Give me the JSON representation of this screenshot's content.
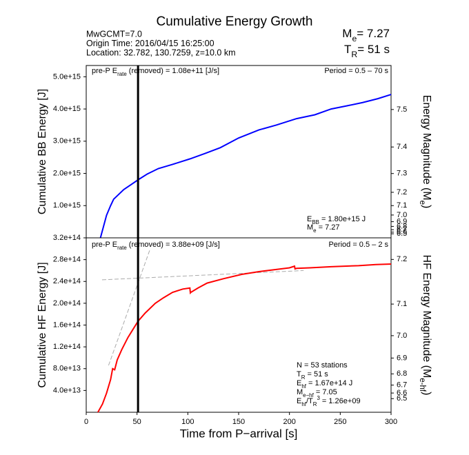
{
  "header": {
    "title": "Cumulative Energy Growth",
    "info": [
      "MwGCMT=7.0",
      "Origin Time: 2016/04/15 16:25:00",
      "Location: 32.782, 130.7259, z=10.0 km"
    ],
    "me": [
      {
        "t": "M"
      },
      {
        "sub": "e"
      },
      {
        "t": "= 7.27"
      }
    ],
    "tr": [
      {
        "t": "T"
      },
      {
        "sub": "R"
      },
      {
        "t": "= 51 s"
      }
    ]
  },
  "chart_data": [
    {
      "type": "line",
      "ylabel": "Cumulative BB Energy [J]",
      "y2label": [
        {
          "t": "Energy Magnitude (M"
        },
        {
          "sub": "e"
        },
        {
          "t": ")"
        }
      ],
      "xlim": [
        0,
        300
      ],
      "ylim": [
        0,
        5350000000000000.0
      ],
      "yticks": [
        {
          "value": 1000000000000000.0,
          "label": "1.0e+15"
        },
        {
          "value": 2000000000000000.0,
          "label": "2.0e+15"
        },
        {
          "value": 3000000000000000.0,
          "label": "3.0e+15"
        },
        {
          "value": 4000000000000000.0,
          "label": "4.0e+15"
        },
        {
          "value": 5000000000000000.0,
          "label": "5.0e+15"
        }
      ],
      "y2ticks": [
        7.5,
        7.4,
        7.3,
        7.2,
        7.1,
        {
          "value": 7,
          "label": "7.0"
        },
        6.9,
        6.8,
        6.7,
        6.6,
        6.5
      ],
      "ref_energy": 1800000000000000.0,
      "ref_magnitude": 7.27,
      "marker_x": 51,
      "color": "#0000ff",
      "x": [
        14,
        17,
        20,
        24,
        27,
        32,
        37,
        44,
        51,
        60,
        71,
        85,
        102,
        117,
        132,
        150,
        170,
        187,
        207,
        225,
        241,
        257,
        272,
        287,
        300
      ],
      "values": [
        0,
        350000000000000.0,
        700000000000000.0,
        1000000000000000.0,
        1200000000000000.0,
        1350000000000000.0,
        1500000000000000.0,
        1650000000000000.0,
        1800000000000000.0,
        1980000000000000.0,
        2150000000000000.0,
        2280000000000000.0,
        2450000000000000.0,
        2620000000000000.0,
        2800000000000000.0,
        3100000000000000.0,
        3350000000000000.0,
        3500000000000000.0,
        3700000000000000.0,
        3820000000000000.0,
        4000000000000000.0,
        4100000000000000.0,
        4200000000000000.0,
        4320000000000000.0,
        4450000000000000.0
      ],
      "annotations": [
        [
          {
            "t": "pre-P E"
          },
          {
            "sub": "rate"
          },
          {
            "t": " (removed) = 1.08e+11 [J/s]"
          }
        ],
        [
          {
            "t": "Period = 0.5 – 70 s"
          }
        ],
        [
          {
            "t": "E"
          },
          {
            "sub": "BB"
          },
          {
            "t": " = 1.80e+15 J"
          }
        ],
        [
          {
            "t": "M"
          },
          {
            "sub": "e"
          },
          {
            "t": " = 7.27"
          }
        ]
      ]
    },
    {
      "type": "line",
      "ylabel": "Cumulative HF Energy [J]",
      "y2label": [
        {
          "t": "HF Energy Magnitude (M"
        },
        {
          "sub": "e-hf"
        },
        {
          "t": ")"
        }
      ],
      "xlabel": "Time from P−arrival [s]",
      "xlim": [
        0,
        300
      ],
      "xticks": [
        0,
        50,
        100,
        150,
        200,
        250,
        300
      ],
      "ylim": [
        0,
        320000000000000.0
      ],
      "yticks": [
        {
          "value": 40000000000000.0,
          "label": "4.0e+13"
        },
        {
          "value": 80000000000000.0,
          "label": "8.0e+13"
        },
        {
          "value": 120000000000000.0,
          "label": "1.2e+14"
        },
        {
          "value": 160000000000000.0,
          "label": "1.6e+14"
        },
        {
          "value": 200000000000000.0,
          "label": "2.0e+14"
        },
        {
          "value": 240000000000000.0,
          "label": "2.4e+14"
        },
        {
          "value": 280000000000000.0,
          "label": "2.8e+14"
        },
        {
          "value": 320000000000000.0,
          "label": "3.2e+14"
        }
      ],
      "y2ticks": [
        7.2,
        7.1,
        {
          "value": 7,
          "label": "7.0"
        },
        6.9,
        6.8,
        6.7,
        6.6,
        6.5
      ],
      "ref_energy": 167000000000000.0,
      "ref_magnitude": 7.05,
      "marker_x": 51,
      "color": "#ff0000",
      "x": [
        11.5,
        16,
        20,
        24,
        26,
        28,
        30.5,
        35,
        41,
        46,
        51,
        58,
        68,
        76,
        85,
        95,
        102,
        102.5,
        103,
        110,
        119,
        135,
        153,
        170,
        187,
        200,
        205,
        205.5,
        207,
        220,
        241,
        268,
        285,
        300
      ],
      "values": [
        0,
        15000000000000.0,
        35000000000000.0,
        60000000000000.0,
        80000000000000.0,
        78000000000000.0,
        96000000000000.0,
        115000000000000.0,
        137000000000000.0,
        152000000000000.0,
        167000000000000.0,
        182000000000000.0,
        200000000000000.0,
        210000000000000.0,
        220000000000000.0,
        226000000000000.0,
        228000000000000.0,
        219000000000000.0,
        220000000000000.0,
        228000000000000.0,
        237000000000000.0,
        245000000000000.0,
        253000000000000.0,
        258000000000000.0,
        262000000000000.0,
        265000000000000.0,
        268000000000000.0,
        263000000000000.0,
        264000000000000.0,
        265000000000000.0,
        267000000000000.0,
        269000000000000.0,
        271000000000000.0,
        272000000000000.0
      ],
      "guide_color": "#aaaaaa",
      "guide_lines": [
        {
          "x": [
            22,
            63
          ],
          "values": [
            86000000000000.0,
            300000000000000.0
          ]
        },
        {
          "x": [
            15.6,
            214
          ],
          "values": [
            243000000000000.0,
            260000000000000.0
          ]
        }
      ],
      "annotations": [
        [
          {
            "t": "pre-P E"
          },
          {
            "sub": "rate"
          },
          {
            "t": " (removed) = 3.88e+09 [J/s]"
          }
        ],
        [
          {
            "t": "Period = 0.5 – 2 s"
          }
        ],
        [
          {
            "t": "N = 53 stations"
          }
        ],
        [
          {
            "t": "T"
          },
          {
            "sub": "R"
          },
          {
            "t": " = 51  s"
          }
        ],
        [
          {
            "t": "E"
          },
          {
            "sub": "hf"
          },
          {
            "t": " = 1.67e+14 J"
          }
        ],
        [
          {
            "t": "M"
          },
          {
            "sub": "e−hf"
          },
          {
            "t": " = 7.05"
          }
        ],
        [
          {
            "t": "E"
          },
          {
            "sub": "hf"
          },
          {
            "t": "/T"
          },
          {
            "sub": "R"
          },
          {
            "sup": "3"
          },
          {
            "t": " =  1.26e+09"
          }
        ]
      ]
    }
  ]
}
